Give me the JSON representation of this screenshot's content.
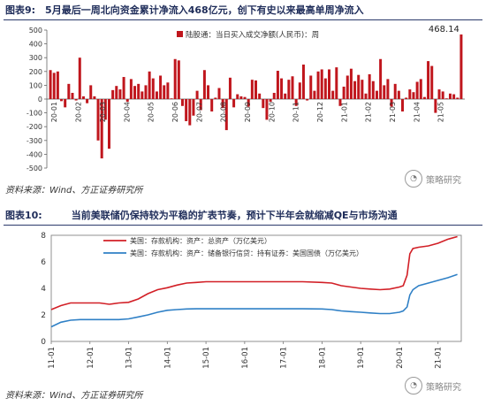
{
  "figure9": {
    "title": "图表9:　5月最后一周北向资金累计净流入468亿元，创下有史以来最高单周净流入",
    "source": "资料来源：Wind、方正证券研究所",
    "watermark": "策略研究"
  },
  "figure10": {
    "title": "图表10:　　　当前美联储仍保持较为平稳的扩表节奏，预计下半年会就缩减QE与市场沟通",
    "source": "资料来源：Wind、方正证券研究所",
    "watermark": "策略研究"
  },
  "colors": {
    "bar": "#c0161d",
    "red_line": "#d21f26",
    "blue_line": "#2f80c6",
    "title_rule": "#2b3a6b"
  },
  "chart_data": [
    {
      "type": "bar",
      "legend": "陆股通：当日买入成交净额(人民币)：周",
      "ylim": [
        -500,
        500
      ],
      "yticks": [
        -500,
        -400,
        -300,
        -200,
        -100,
        0,
        100,
        200,
        300,
        400,
        500
      ],
      "xticks": [
        "20-01",
        "20-02",
        "20-03",
        "20-04",
        "20-05",
        "20-06",
        "20-07",
        "20-08",
        "20-09",
        "20-10",
        "20-11",
        "20-12",
        "21-01",
        "21-02",
        "21-03",
        "21-04",
        "21-05"
      ],
      "annotation": "468.14",
      "values": [
        210,
        190,
        200,
        -15,
        -60,
        110,
        45,
        -10,
        300,
        20,
        -30,
        100,
        20,
        -300,
        -430,
        -150,
        -360,
        65,
        95,
        70,
        160,
        -20,
        145,
        95,
        110,
        55,
        100,
        200,
        150,
        55,
        170,
        100,
        120,
        5,
        290,
        280,
        -50,
        -160,
        -190,
        -120,
        60,
        -80,
        210,
        100,
        -90,
        10,
        80,
        -65,
        -225,
        155,
        -60,
        35,
        20,
        15,
        -55,
        140,
        135,
        40,
        -65,
        -150,
        -20,
        45,
        205,
        150,
        40,
        140,
        165,
        -50,
        120,
        250,
        -10,
        170,
        60,
        200,
        215,
        150,
        215,
        60,
        230,
        -50,
        90,
        170,
        220,
        130,
        175,
        140,
        40,
        180,
        130,
        60,
        290,
        100,
        145,
        -55,
        110,
        60,
        -90,
        10,
        70,
        50,
        125,
        145,
        15,
        275,
        240,
        -100,
        70,
        55,
        5,
        40,
        35,
        10,
        468.14
      ]
    },
    {
      "type": "line",
      "ylim": [
        0,
        8
      ],
      "yticks": [
        0,
        2,
        4,
        6,
        8
      ],
      "xticks": [
        "11-01",
        "12-01",
        "13-01",
        "14-01",
        "15-01",
        "16-01",
        "17-01",
        "18-01",
        "19-01",
        "20-01",
        "21-01"
      ],
      "series": [
        {
          "name": "美国：存款机构：资产：总资产（万亿美元）",
          "x": [
            2011.0,
            2011.25,
            2011.5,
            2011.75,
            2012.0,
            2012.25,
            2012.5,
            2012.75,
            2013.0,
            2013.25,
            2013.5,
            2013.75,
            2014.0,
            2014.25,
            2014.5,
            2014.75,
            2015.0,
            2015.5,
            2016.0,
            2016.5,
            2017.0,
            2017.5,
            2018.0,
            2018.25,
            2018.5,
            2018.75,
            2019.0,
            2019.25,
            2019.5,
            2019.75,
            2020.0,
            2020.1,
            2020.2,
            2020.27,
            2020.35,
            2020.5,
            2020.75,
            2021.0,
            2021.25,
            2021.5
          ],
          "values": [
            2.4,
            2.7,
            2.9,
            2.9,
            2.9,
            2.9,
            2.8,
            2.9,
            2.95,
            3.2,
            3.6,
            3.9,
            4.05,
            4.25,
            4.4,
            4.45,
            4.5,
            4.5,
            4.5,
            4.5,
            4.5,
            4.5,
            4.45,
            4.4,
            4.2,
            4.1,
            4.0,
            3.95,
            3.9,
            3.95,
            4.1,
            4.2,
            5.0,
            6.6,
            7.0,
            7.1,
            7.2,
            7.4,
            7.7,
            7.9
          ]
        },
        {
          "name": "美国：存款机构：资产：储备银行信贷：持有证券：美国国债（万亿美元）",
          "x": [
            2011.0,
            2011.25,
            2011.5,
            2011.75,
            2012.0,
            2012.25,
            2012.5,
            2012.75,
            2013.0,
            2013.25,
            2013.5,
            2013.75,
            2014.0,
            2014.25,
            2014.5,
            2014.75,
            2015.0,
            2015.5,
            2016.0,
            2016.5,
            2017.0,
            2017.5,
            2018.0,
            2018.25,
            2018.5,
            2018.75,
            2019.0,
            2019.25,
            2019.5,
            2019.75,
            2020.0,
            2020.1,
            2020.2,
            2020.27,
            2020.35,
            2020.5,
            2020.75,
            2021.0,
            2021.25,
            2021.5
          ],
          "values": [
            1.1,
            1.45,
            1.6,
            1.65,
            1.65,
            1.65,
            1.65,
            1.65,
            1.7,
            1.85,
            2.0,
            2.2,
            2.35,
            2.4,
            2.45,
            2.46,
            2.46,
            2.46,
            2.46,
            2.46,
            2.46,
            2.46,
            2.45,
            2.4,
            2.3,
            2.25,
            2.2,
            2.15,
            2.1,
            2.1,
            2.2,
            2.3,
            2.6,
            3.5,
            3.9,
            4.2,
            4.4,
            4.6,
            4.8,
            5.05
          ]
        }
      ]
    }
  ]
}
